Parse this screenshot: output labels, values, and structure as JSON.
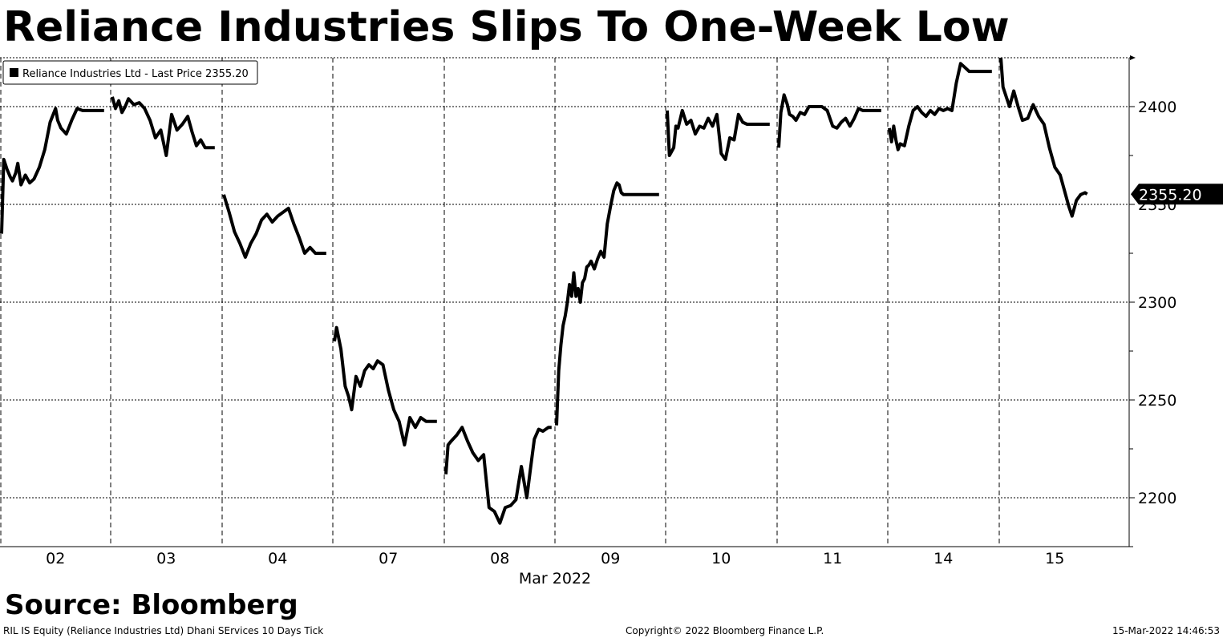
{
  "header": {
    "title": "Reliance Industries Slips To One-Week Low"
  },
  "source": {
    "label": "Source: Bloomberg"
  },
  "footer": {
    "left": "RIL IS Equity (Reliance Industries Ltd) Dhani SErvices 10 Days  Tick",
    "center": "Copyright© 2022 Bloomberg Finance L.P.",
    "right": "15-Mar-2022 14:46:53"
  },
  "colors": {
    "line": "#000000",
    "grid": "#000000",
    "background": "#ffffff"
  },
  "chart_data": {
    "type": "line",
    "title": "Reliance Industries Slips To One-Week Low",
    "xlabel": "Mar 2022",
    "ylabel": "",
    "ylim": [
      2175,
      2425
    ],
    "yticks": [
      2200,
      2250,
      2300,
      2350,
      2400
    ],
    "categories": [
      "02",
      "03",
      "04",
      "07",
      "08",
      "09",
      "10",
      "11",
      "14",
      "15"
    ],
    "month_label": "Mar 2022",
    "legend": "Reliance Industries Ltd - Last Price 2355.20",
    "last_price": 2355.2,
    "last_price_label": "2355.20",
    "series": [
      {
        "name": "Reliance Industries Ltd - Last Price",
        "days": [
          {
            "day": "02",
            "t": [
              0,
              0.02,
              0.05,
              0.08,
              0.1,
              0.13,
              0.15,
              0.18,
              0.22,
              0.26,
              0.3,
              0.35,
              0.4,
              0.45,
              0.5,
              0.52,
              0.55,
              0.6,
              0.65,
              0.7,
              0.75,
              0.82,
              0.9,
              0.95
            ],
            "v": [
              2335,
              2373,
              2368,
              2364,
              2362,
              2366,
              2371,
              2360,
              2365,
              2361,
              2363,
              2369,
              2378,
              2392,
              2399,
              2393,
              2389,
              2386,
              2393,
              2399,
              2398,
              2398,
              2398,
              2398
            ]
          },
          {
            "day": "03",
            "t": [
              0,
              0.03,
              0.06,
              0.09,
              0.12,
              0.15,
              0.2,
              0.25,
              0.3,
              0.35,
              0.4,
              0.45,
              0.5,
              0.55,
              0.6,
              0.65,
              0.7,
              0.74,
              0.78,
              0.82,
              0.86,
              0.9,
              0.95
            ],
            "v": [
              2405,
              2399,
              2403,
              2397,
              2400,
              2404,
              2401,
              2402,
              2399,
              2393,
              2384,
              2388,
              2375,
              2396,
              2388,
              2391,
              2395,
              2387,
              2380,
              2383,
              2379,
              2379,
              2379
            ]
          },
          {
            "day": "04",
            "t": [
              0,
              0.05,
              0.1,
              0.15,
              0.2,
              0.25,
              0.3,
              0.35,
              0.4,
              0.45,
              0.5,
              0.55,
              0.6,
              0.65,
              0.7,
              0.75,
              0.8,
              0.85,
              0.9,
              0.95
            ],
            "v": [
              2355,
              2346,
              2336,
              2330,
              2323,
              2330,
              2335,
              2342,
              2345,
              2341,
              2344,
              2346,
              2348,
              2340,
              2333,
              2325,
              2328,
              2325,
              2325,
              2325
            ]
          },
          {
            "day": "07",
            "t": [
              0,
              0.02,
              0.06,
              0.1,
              0.13,
              0.16,
              0.2,
              0.24,
              0.28,
              0.32,
              0.36,
              0.4,
              0.45,
              0.5,
              0.55,
              0.6,
              0.65,
              0.7,
              0.75,
              0.8,
              0.85,
              0.9,
              0.95
            ],
            "v": [
              2280,
              2287,
              2276,
              2257,
              2252,
              2245,
              2262,
              2257,
              2265,
              2268,
              2266,
              2270,
              2268,
              2255,
              2245,
              2239,
              2227,
              2241,
              2236,
              2241,
              2239,
              2239,
              2239
            ]
          },
          {
            "day": "08",
            "t": [
              0,
              0.02,
              0.05,
              0.1,
              0.15,
              0.2,
              0.25,
              0.3,
              0.35,
              0.4,
              0.45,
              0.5,
              0.55,
              0.6,
              0.65,
              0.7,
              0.75,
              0.78,
              0.82,
              0.86,
              0.9,
              0.95,
              0.98
            ],
            "v": [
              2212,
              2227,
              2229,
              2232,
              2236,
              2229,
              2223,
              2219,
              2222,
              2195,
              2193,
              2187,
              2195,
              2196,
              2199,
              2216,
              2200,
              2213,
              2230,
              2235,
              2234,
              2236,
              2236
            ]
          },
          {
            "day": "09",
            "t": [
              0,
              0.02,
              0.04,
              0.06,
              0.08,
              0.1,
              0.12,
              0.14,
              0.16,
              0.18,
              0.2,
              0.22,
              0.24,
              0.26,
              0.28,
              0.3,
              0.32,
              0.35,
              0.38,
              0.41,
              0.44,
              0.47,
              0.5,
              0.53,
              0.56,
              0.58,
              0.6,
              0.62,
              0.64,
              0.66,
              0.68,
              0.7,
              0.72,
              0.75,
              0.8,
              0.85,
              0.9,
              0.95
            ],
            "v": [
              2237,
              2265,
              2278,
              2288,
              2293,
              2300,
              2309,
              2303,
              2315,
              2303,
              2307,
              2300,
              2310,
              2312,
              2318,
              2319,
              2321,
              2317,
              2322,
              2326,
              2323,
              2340,
              2349,
              2357,
              2361,
              2360,
              2356,
              2355,
              2355,
              2355,
              2355,
              2355,
              2355,
              2355,
              2355,
              2355,
              2355,
              2355
            ]
          },
          {
            "day": "10",
            "t": [
              0,
              0.02,
              0.04,
              0.06,
              0.08,
              0.1,
              0.14,
              0.18,
              0.22,
              0.26,
              0.3,
              0.34,
              0.38,
              0.42,
              0.46,
              0.5,
              0.54,
              0.58,
              0.62,
              0.66,
              0.7,
              0.74,
              0.78,
              0.82,
              0.86,
              0.9,
              0.95
            ],
            "v": [
              2398,
              2375,
              2377,
              2379,
              2390,
              2389,
              2398,
              2391,
              2393,
              2386,
              2390,
              2389,
              2394,
              2390,
              2396,
              2376,
              2373,
              2384,
              2383,
              2396,
              2392,
              2391,
              2391,
              2391,
              2391,
              2391,
              2391
            ]
          },
          {
            "day": "11",
            "t": [
              0,
              0.02,
              0.05,
              0.08,
              0.1,
              0.13,
              0.16,
              0.2,
              0.24,
              0.28,
              0.32,
              0.36,
              0.4,
              0.45,
              0.5,
              0.54,
              0.58,
              0.62,
              0.66,
              0.7,
              0.74,
              0.78,
              0.82,
              0.86,
              0.9,
              0.95
            ],
            "v": [
              2379,
              2397,
              2406,
              2401,
              2396,
              2395,
              2393,
              2397,
              2396,
              2400,
              2400,
              2400,
              2400,
              2398,
              2390,
              2389,
              2392,
              2394,
              2390,
              2394,
              2399,
              2398,
              2398,
              2398,
              2398,
              2398
            ]
          },
          {
            "day": "14",
            "t": [
              0,
              0.02,
              0.04,
              0.06,
              0.08,
              0.1,
              0.14,
              0.18,
              0.22,
              0.26,
              0.3,
              0.34,
              0.38,
              0.42,
              0.46,
              0.5,
              0.54,
              0.58,
              0.62,
              0.66,
              0.7,
              0.74,
              0.78,
              0.82,
              0.86,
              0.9,
              0.95
            ],
            "v": [
              2389,
              2382,
              2390,
              2383,
              2378,
              2381,
              2380,
              2390,
              2398,
              2400,
              2397,
              2395,
              2398,
              2396,
              2399,
              2398,
              2399,
              2398,
              2412,
              2422,
              2420,
              2418,
              2418,
              2418,
              2418,
              2418,
              2418
            ]
          },
          {
            "day": "15",
            "t": [
              0,
              0.02,
              0.05,
              0.08,
              0.12,
              0.16,
              0.2,
              0.25,
              0.3,
              0.35,
              0.4,
              0.45,
              0.5,
              0.55,
              0.6,
              0.63,
              0.66,
              0.7,
              0.74,
              0.78,
              0.8
            ],
            "v": [
              2425,
              2410,
              2405,
              2400,
              2408,
              2400,
              2393,
              2394,
              2401,
              2395,
              2391,
              2379,
              2369,
              2365,
              2355,
              2349,
              2344,
              2352,
              2355,
              2356,
              2355.2
            ]
          }
        ]
      }
    ]
  }
}
